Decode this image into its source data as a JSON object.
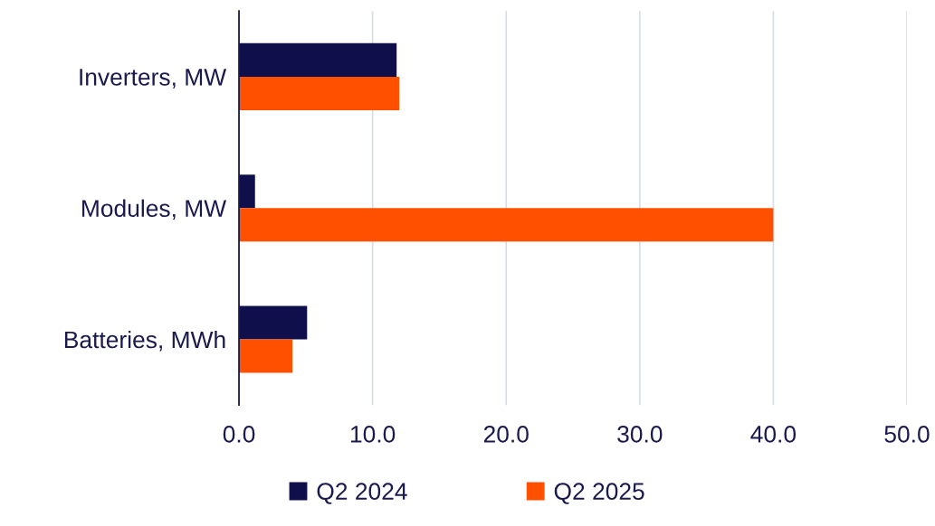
{
  "chart_data": {
    "type": "bar",
    "orientation": "horizontal",
    "categories": [
      "Inverters, MW",
      "Modules, MW",
      "Batteries, MWh"
    ],
    "series": [
      {
        "name": "Q2 2024",
        "color": "#0f0f4b",
        "values": [
          11.8,
          1.2,
          5.1
        ]
      },
      {
        "name": "Q2 2025",
        "color": "#ff5000",
        "values": [
          12.0,
          40.0,
          4.0
        ]
      }
    ],
    "xlim": [
      0,
      50
    ],
    "xticks": [
      {
        "value": 0,
        "label": "0.0"
      },
      {
        "value": 10,
        "label": "10.0"
      },
      {
        "value": 20,
        "label": "20.0"
      },
      {
        "value": 30,
        "label": "30.0"
      },
      {
        "value": 40,
        "label": "40.0"
      },
      {
        "value": 50,
        "label": "50.0"
      }
    ],
    "grid": "x",
    "legend": "bottom"
  }
}
